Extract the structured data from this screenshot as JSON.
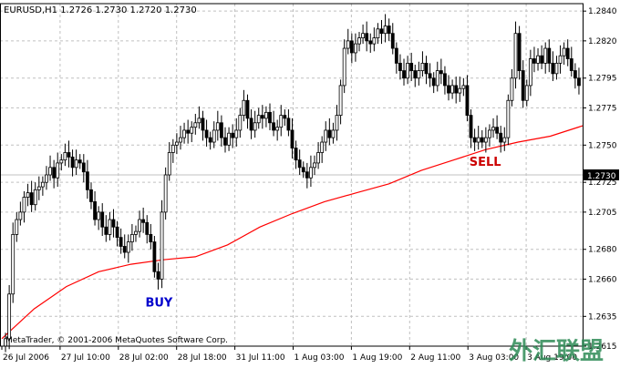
{
  "chart_data": {
    "type": "candlestick",
    "title": "EURUSD,H1  1.2726 1.2730 1.2720 1.2730",
    "symbol": "EURUSD",
    "timeframe": "H1",
    "ohlc_header": {
      "open": 1.2726,
      "high": 1.273,
      "low": 1.272,
      "close": 1.273
    },
    "current_price": 1.273,
    "ylim": [
      1.2615,
      1.2845
    ],
    "grid": true,
    "y_ticks": [
      "1.2840",
      "1.2820",
      "1.2795",
      "1.2775",
      "1.2750",
      "1.2730",
      "1.2725",
      "1.2705",
      "1.2680",
      "1.2660",
      "1.2635",
      "1.2615"
    ],
    "x_ticks": [
      "26 Jul 2006",
      "27 Jul 10:00",
      "28 Jul 02:00",
      "28 Jul 18:00",
      "31 Jul 11:00",
      "1 Aug 03:00",
      "1 Aug 19:00",
      "2 Aug 11:00",
      "3 Aug 03:00",
      "3 Aug 19:00"
    ],
    "series": [
      {
        "kind": "candles",
        "close": [
          1.262,
          1.265,
          1.269,
          1.27,
          1.2705,
          1.2715,
          1.2718,
          1.271,
          1.272,
          1.2722,
          1.2725,
          1.273,
          1.2735,
          1.2728,
          1.2738,
          1.274,
          1.2745,
          1.2742,
          1.2735,
          1.274,
          1.2738,
          1.2732,
          1.272,
          1.2712,
          1.27,
          1.2705,
          1.2695,
          1.269,
          1.27,
          1.2695,
          1.2688,
          1.2682,
          1.2678,
          1.2685,
          1.269,
          1.2692,
          1.27,
          1.2698,
          1.269,
          1.2685,
          1.2665,
          1.266,
          1.2705,
          1.273,
          1.2745,
          1.275,
          1.2752,
          1.2755,
          1.276,
          1.2758,
          1.2762,
          1.2765,
          1.2768,
          1.276,
          1.2755,
          1.2752,
          1.276,
          1.2765,
          1.2755,
          1.275,
          1.2758,
          1.2755,
          1.276,
          1.277,
          1.278,
          1.2768,
          1.276,
          1.2765,
          1.277,
          1.2768,
          1.2772,
          1.2765,
          1.276,
          1.2762,
          1.277,
          1.2768,
          1.276,
          1.2748,
          1.274,
          1.2735,
          1.2732,
          1.2728,
          1.2735,
          1.2738,
          1.2745,
          1.2752,
          1.276,
          1.2755,
          1.276,
          1.277,
          1.279,
          1.2815,
          1.282,
          1.2812,
          1.2818,
          1.2822,
          1.2825,
          1.282,
          1.2818,
          1.2822,
          1.2828,
          1.2825,
          1.283,
          1.2825,
          1.2815,
          1.2805,
          1.28,
          1.2795,
          1.2805,
          1.28,
          1.2795,
          1.28,
          1.2805,
          1.2798,
          1.2795,
          1.279,
          1.28,
          1.2798,
          1.279,
          1.2785,
          1.279,
          1.2785,
          1.2788,
          1.279,
          1.277,
          1.2755,
          1.2752,
          1.2755,
          1.2752,
          1.2755,
          1.276,
          1.2762,
          1.2758,
          1.2752,
          1.2755,
          1.278,
          1.2795,
          1.2825,
          1.28,
          1.278,
          1.279,
          1.2808,
          1.2805,
          1.281,
          1.2805,
          1.2815,
          1.2805,
          1.2798,
          1.2805,
          1.281,
          1.2815,
          1.2808,
          1.28,
          1.2795,
          1.279
        ],
        "highs_mark": "wicks"
      },
      {
        "kind": "line",
        "name": "",
        "color": "#ff0000",
        "values": [
          1.262,
          1.264,
          1.2655,
          1.2665,
          1.267,
          1.2673,
          1.2675,
          1.2683,
          1.2695,
          1.2704,
          1.2712,
          1.2718,
          1.2724,
          1.2733,
          1.274,
          1.2747,
          1.2752,
          1.2756,
          1.2763
        ]
      }
    ],
    "annotations": [
      {
        "text": "BUY",
        "color": "#0000cc",
        "at_bar": 41
      },
      {
        "text": "SELL",
        "color": "#cc0000",
        "at_bar": 128
      }
    ],
    "footer": "MetaTrader, © 2001-2006 MetaQuotes Software Corp.",
    "watermark": "外汇联盟"
  },
  "colors": {
    "background": "#ffffff",
    "candle": "#000000",
    "ma": "#ff0000",
    "grid": "#c0c0c0",
    "buy": "#0000cc",
    "sell": "#cc0000",
    "price_line": "#c0c0c0",
    "watermark": "#2e8b57"
  }
}
